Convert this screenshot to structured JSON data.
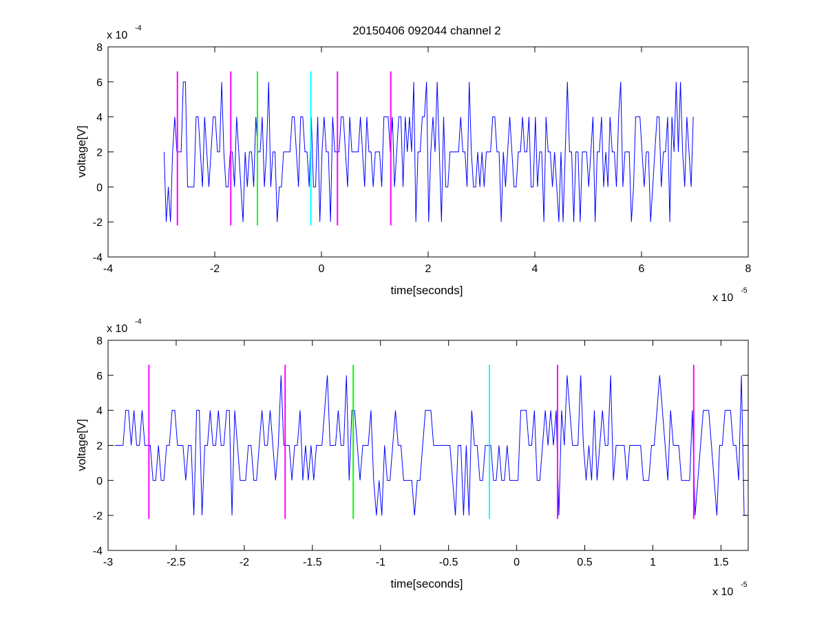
{
  "chart_data": [
    {
      "type": "line",
      "title": "20150406 092044 channel 2",
      "xlabel": "time[seconds]",
      "ylabel": "voltage[V]",
      "x_multiplier": {
        "base": "x 10",
        "exponent": "-5"
      },
      "y_multiplier": {
        "base": "x 10",
        "exponent": "-4"
      },
      "xlim": [
        -4,
        8
      ],
      "ylim": [
        -4,
        8
      ],
      "xticks": [
        -4,
        -2,
        0,
        2,
        4,
        6,
        8
      ],
      "xtick_labels": [
        "-4",
        "-2",
        "0",
        "2",
        "4",
        "6",
        "8"
      ],
      "yticks": [
        -4,
        -2,
        0,
        2,
        4,
        6,
        8
      ],
      "ytick_labels": [
        "-4",
        "-2",
        "0",
        "2",
        "4",
        "6",
        "8"
      ],
      "grid": false,
      "signal": {
        "color": "#0000ff",
        "x_range": [
          -2.95,
          7.0
        ],
        "step": 0.04,
        "seed": 7
      },
      "markers": [
        {
          "x": -2.7,
          "color": "#ff00ff"
        },
        {
          "x": -1.7,
          "color": "#ff00ff"
        },
        {
          "x": -1.2,
          "color": "#00ff00"
        },
        {
          "x": -0.2,
          "color": "#00ffff"
        },
        {
          "x": 0.3,
          "color": "#ff00ff"
        },
        {
          "x": 1.3,
          "color": "#ff00ff"
        }
      ],
      "marker_y_range": [
        -2.2,
        6.6
      ]
    },
    {
      "type": "line",
      "title": "",
      "xlabel": "time[seconds]",
      "ylabel": "voltage[V]",
      "x_multiplier": {
        "base": "x 10",
        "exponent": "-5"
      },
      "y_multiplier": {
        "base": "x 10",
        "exponent": "-4"
      },
      "xlim": [
        -3,
        1.7
      ],
      "ylim": [
        -4,
        8
      ],
      "xticks": [
        -3,
        -2.5,
        -2,
        -1.5,
        -1,
        -0.5,
        0,
        0.5,
        1,
        1.5
      ],
      "xtick_labels": [
        "-3",
        "-2.5",
        "-2",
        "-1.5",
        "-1",
        "-0.5",
        "0",
        "0.5",
        "1",
        "1.5"
      ],
      "yticks": [
        -4,
        -2,
        0,
        2,
        4,
        6,
        8
      ],
      "ytick_labels": [
        "-4",
        "-2",
        "0",
        "2",
        "4",
        "6",
        "8"
      ],
      "grid": false,
      "signal": {
        "color": "#0000ff",
        "x_range": [
          -2.95,
          1.7
        ],
        "step": 0.02,
        "seed": 11
      },
      "markers": [
        {
          "x": -2.7,
          "color": "#ff00ff"
        },
        {
          "x": -1.7,
          "color": "#ff00ff"
        },
        {
          "x": -1.2,
          "color": "#00ff00"
        },
        {
          "x": -0.2,
          "color": "#00ffff"
        },
        {
          "x": 0.3,
          "color": "#ff00ff"
        },
        {
          "x": 1.3,
          "color": "#ff00ff"
        }
      ],
      "marker_y_range": [
        -2.2,
        6.6
      ]
    }
  ]
}
